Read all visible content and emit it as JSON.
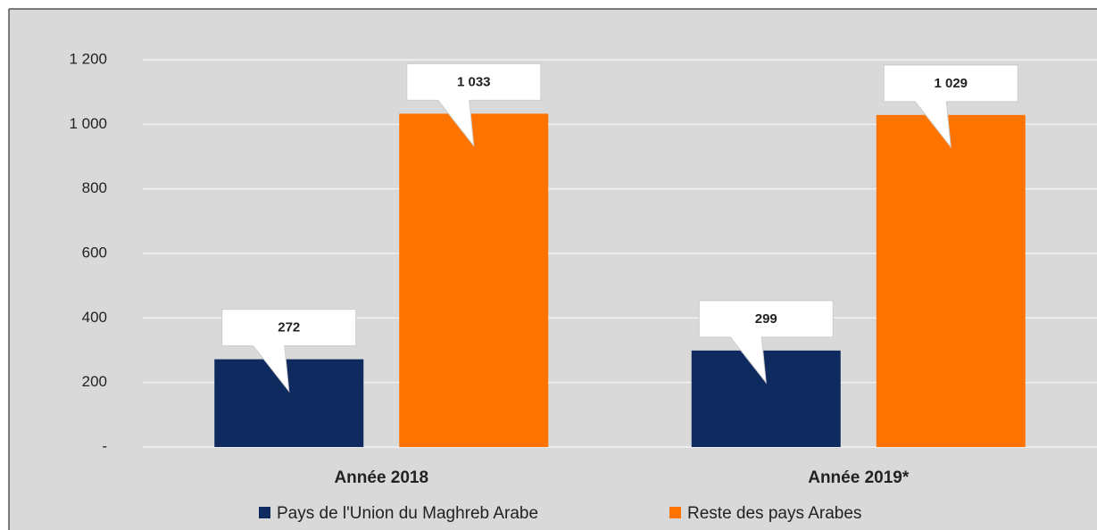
{
  "chart_data": {
    "type": "bar",
    "categories": [
      "Année 2018",
      "Année 2019*"
    ],
    "series": [
      {
        "name": "Pays de l'Union du Maghreb Arabe",
        "color": "#0e2a5e",
        "values": [
          272,
          299
        ],
        "value_labels": [
          "272",
          "299"
        ]
      },
      {
        "name": "Reste des pays Arabes",
        "color": "#ff7300",
        "values": [
          1033,
          1029
        ],
        "value_labels": [
          "1 033",
          "1 029"
        ]
      }
    ],
    "ylim": [
      0,
      1200
    ],
    "yticks": [
      {
        "value": 0,
        "label": "-"
      },
      200,
      400,
      600,
      800,
      {
        "value": 1000,
        "label": "1 000"
      },
      {
        "value": 1200,
        "label": "1 200"
      }
    ],
    "grid": true,
    "legend": "bottom"
  }
}
